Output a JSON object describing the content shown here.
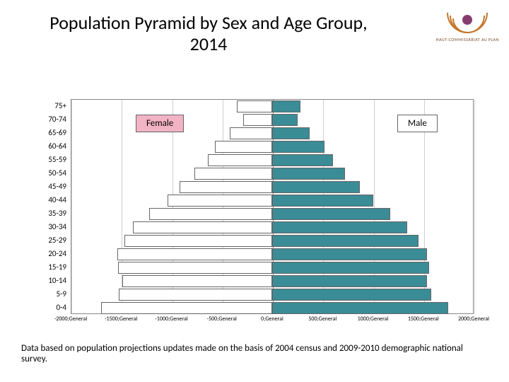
{
  "title": "Population Pyramid by Sex and Age Group, 2014",
  "title_fontsize": 26,
  "title_color": "#000000",
  "logo": {
    "org_name": "HAUT-COMMISSARIAT AU PLAN",
    "accent": "#863d6e",
    "ring": "#c4782c"
  },
  "caption": "Data based on population projections updates made on the basis of 2004 census and 2009-2010 demographic national survey.",
  "legend": {
    "female": {
      "label": "Female",
      "bg": "#f2b3c4"
    },
    "male": {
      "label": "Male",
      "bg": "#ffffff"
    }
  },
  "chart": {
    "type": "population-pyramid",
    "x_min": -2000,
    "x_max": 2000,
    "x_tick_step": 500,
    "x_tick_labels": [
      "-2000;General",
      "-1500;General",
      "-1000;General",
      "-500;General",
      "0;General",
      "500;General",
      "1000;General",
      "1500;General",
      "2000;General"
    ],
    "bar_border_color": "#666666",
    "female_fill": "#ffffff",
    "male_fill": "#3a8c96",
    "grid_color": "#cfcfcf",
    "axis_color": "#888888",
    "age_groups": [
      "75+",
      "70-74",
      "65-69",
      "60-64",
      "55-59",
      "50-54",
      "45-49",
      "40-44",
      "35-39",
      "30-34",
      "25-29",
      "20-24",
      "15-19",
      "10-14",
      "5-9",
      "0-4"
    ],
    "female_values": [
      350,
      290,
      420,
      570,
      640,
      770,
      920,
      1040,
      1220,
      1380,
      1470,
      1540,
      1530,
      1490,
      1520,
      1700
    ],
    "male_values": [
      280,
      250,
      370,
      520,
      600,
      720,
      870,
      1000,
      1170,
      1340,
      1450,
      1540,
      1560,
      1540,
      1580,
      1750
    ]
  }
}
